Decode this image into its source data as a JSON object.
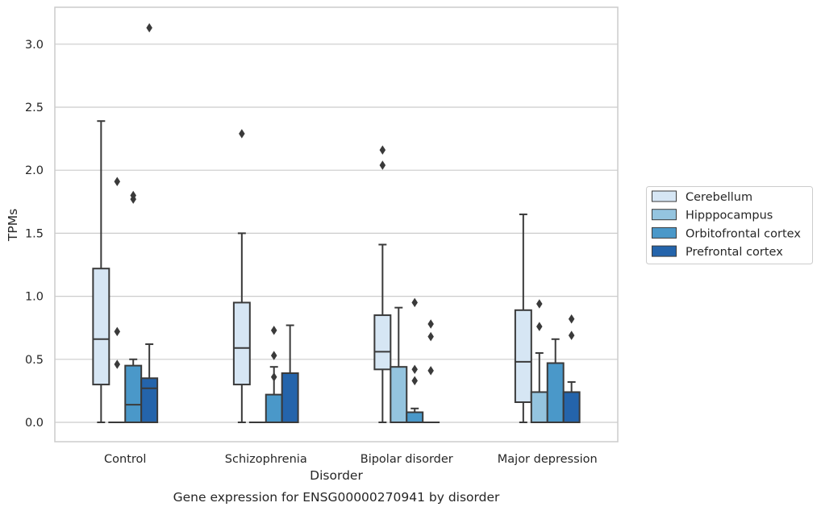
{
  "chart_data": {
    "type": "box",
    "xlabel": "Disorder",
    "ylabel": "TPMs",
    "caption": "Gene expression for ENSG00000270941 by disorder",
    "ylim": [
      -0.15,
      3.3
    ],
    "yticks": [
      0.0,
      0.5,
      1.0,
      1.5,
      2.0,
      2.5,
      3.0
    ],
    "ytick_labels": [
      "0.0",
      "0.5",
      "1.0",
      "1.5",
      "2.0",
      "2.5",
      "3.0"
    ],
    "grid": true,
    "legend_position": "right",
    "categories": [
      "Control",
      "Schizophrenia",
      "Bipolar disorder",
      "Major depression"
    ],
    "series": [
      {
        "name": "Cerebellum",
        "color": "#d6e6f4",
        "boxes": [
          {
            "whislo": 0.0,
            "q1": 0.3,
            "med": 0.66,
            "q3": 1.22,
            "whishi": 2.39,
            "fliers": []
          },
          {
            "whislo": 0.0,
            "q1": 0.3,
            "med": 0.59,
            "q3": 0.95,
            "whishi": 1.5,
            "fliers": [
              2.29
            ]
          },
          {
            "whislo": 0.0,
            "q1": 0.42,
            "med": 0.56,
            "q3": 0.85,
            "whishi": 1.41,
            "fliers": [
              2.04,
              2.16
            ]
          },
          {
            "whislo": 0.0,
            "q1": 0.16,
            "med": 0.48,
            "q3": 0.89,
            "whishi": 1.65,
            "fliers": []
          }
        ]
      },
      {
        "name": "Hipppocampus",
        "color": "#94c4df",
        "boxes": [
          {
            "whislo": 0.0,
            "q1": 0.0,
            "med": 0.0,
            "q3": 0.0,
            "whishi": 0.0,
            "fliers": [
              0.46,
              0.72,
              1.91
            ]
          },
          {
            "whislo": 0.0,
            "q1": 0.0,
            "med": 0.0,
            "q3": 0.0,
            "whishi": 0.0,
            "fliers": []
          },
          {
            "whislo": 0.0,
            "q1": 0.0,
            "med": 0.0,
            "q3": 0.44,
            "whishi": 0.91,
            "fliers": []
          },
          {
            "whislo": 0.0,
            "q1": 0.0,
            "med": 0.0,
            "q3": 0.24,
            "whishi": 0.55,
            "fliers": [
              0.76,
              0.94
            ]
          }
        ]
      },
      {
        "name": "Orbitofrontal cortex",
        "color": "#4a98c9",
        "boxes": [
          {
            "whislo": 0.0,
            "q1": 0.0,
            "med": 0.14,
            "q3": 0.45,
            "whishi": 0.5,
            "fliers": [
              1.77,
              1.8
            ]
          },
          {
            "whislo": 0.0,
            "q1": 0.0,
            "med": 0.0,
            "q3": 0.22,
            "whishi": 0.44,
            "fliers": [
              0.36,
              0.53,
              0.73
            ]
          },
          {
            "whislo": 0.0,
            "q1": 0.0,
            "med": 0.0,
            "q3": 0.08,
            "whishi": 0.11,
            "fliers": [
              0.33,
              0.42,
              0.95
            ]
          },
          {
            "whislo": 0.0,
            "q1": 0.0,
            "med": 0.0,
            "q3": 0.47,
            "whishi": 0.66,
            "fliers": []
          }
        ]
      },
      {
        "name": "Prefrontal cortex",
        "color": "#2464ab",
        "boxes": [
          {
            "whislo": 0.0,
            "q1": 0.0,
            "med": 0.27,
            "q3": 0.35,
            "whishi": 0.62,
            "fliers": [
              3.13
            ]
          },
          {
            "whislo": 0.0,
            "q1": 0.0,
            "med": 0.0,
            "q3": 0.39,
            "whishi": 0.77,
            "fliers": []
          },
          {
            "whislo": 0.0,
            "q1": 0.0,
            "med": 0.0,
            "q3": 0.0,
            "whishi": 0.0,
            "fliers": [
              0.41,
              0.68,
              0.78
            ]
          },
          {
            "whislo": 0.0,
            "q1": 0.0,
            "med": 0.0,
            "q3": 0.24,
            "whishi": 0.32,
            "fliers": [
              0.69,
              0.82
            ]
          }
        ]
      }
    ]
  }
}
